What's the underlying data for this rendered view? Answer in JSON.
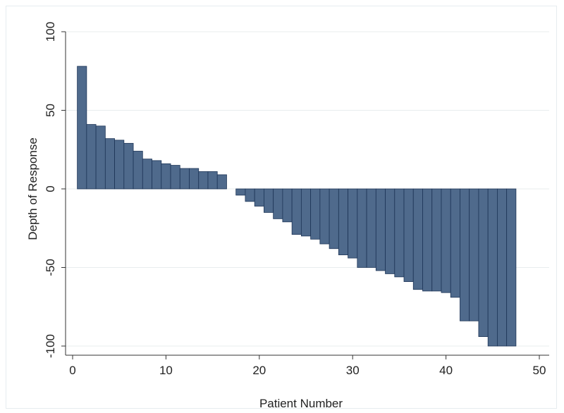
{
  "chart_data": {
    "type": "bar",
    "title": "",
    "xlabel": "Patient Number",
    "ylabel": "Depth of Response",
    "xlim": [
      0,
      50
    ],
    "ylim": [
      -100,
      100
    ],
    "x_ticks": [
      0,
      10,
      20,
      30,
      40,
      50
    ],
    "y_ticks": [
      -100,
      -50,
      0,
      50,
      100
    ],
    "x_tick_labels": [
      "0",
      "10",
      "20",
      "30",
      "40",
      "50"
    ],
    "y_tick_labels": [
      "-100",
      "-50",
      "0",
      "50",
      "100"
    ],
    "grid": true,
    "bar_color": "#4f6a8c",
    "bar_edge_color": "#1d3557",
    "x": [
      1,
      2,
      3,
      4,
      5,
      6,
      7,
      8,
      9,
      10,
      11,
      12,
      13,
      14,
      15,
      16,
      17,
      18,
      19,
      20,
      21,
      22,
      23,
      24,
      25,
      26,
      27,
      28,
      29,
      30,
      31,
      32,
      33,
      34,
      35,
      36,
      37,
      38,
      39,
      40,
      41,
      42,
      43,
      44,
      45,
      46,
      47
    ],
    "values": [
      78,
      41,
      40,
      32,
      31,
      29,
      24,
      19,
      18,
      16,
      15,
      13,
      13,
      11,
      11,
      9,
      0,
      -4,
      -8,
      -11,
      -15,
      -19,
      -21,
      -29,
      -30,
      -32,
      -35,
      -38,
      -42,
      -44,
      -50,
      -50,
      -52,
      -54,
      -56,
      -59,
      -64,
      -65,
      -65,
      -66,
      -69,
      -84,
      -84,
      -94,
      -100,
      -100,
      -100
    ]
  },
  "colors": {
    "background": "#ffffff",
    "gridline": "#e8ecee",
    "axis": "#333333"
  }
}
